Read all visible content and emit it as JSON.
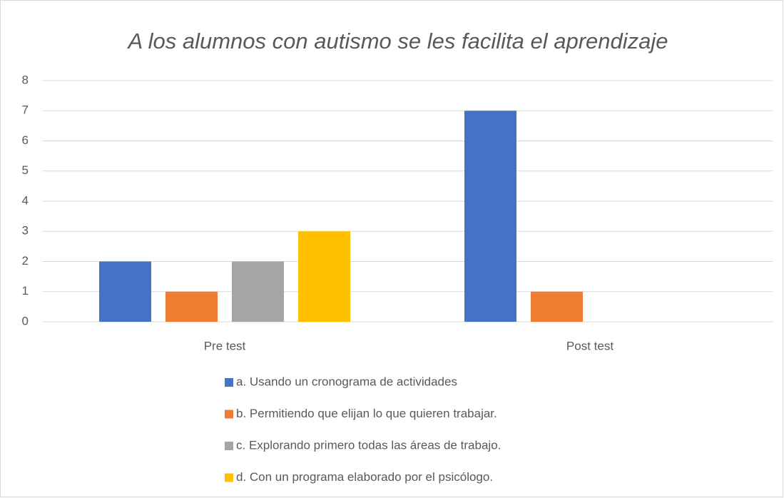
{
  "chart_data": {
    "type": "bar",
    "title": "A los alumnos con autismo se les facilita el aprendizaje",
    "categories": [
      "Pre test",
      "Post test"
    ],
    "series": [
      {
        "name": "a. Usando un cronograma de actividades",
        "color": "#4472c4",
        "values": [
          2,
          7
        ]
      },
      {
        "name": "b. Permitiendo que elijan lo que quieren trabajar.",
        "color": "#ed7d31",
        "values": [
          1,
          1
        ]
      },
      {
        "name": "c. Explorando primero todas las áreas de trabajo.",
        "color": "#a5a5a5",
        "values": [
          2,
          0
        ]
      },
      {
        "name": "d. Con un programa elaborado por el psicólogo.",
        "color": "#ffc000",
        "values": [
          3,
          0
        ]
      }
    ],
    "ylim": [
      0,
      8
    ],
    "yticks": [
      0,
      1,
      2,
      3,
      4,
      5,
      6,
      7,
      8
    ],
    "grid": true,
    "legend": "bottom"
  }
}
